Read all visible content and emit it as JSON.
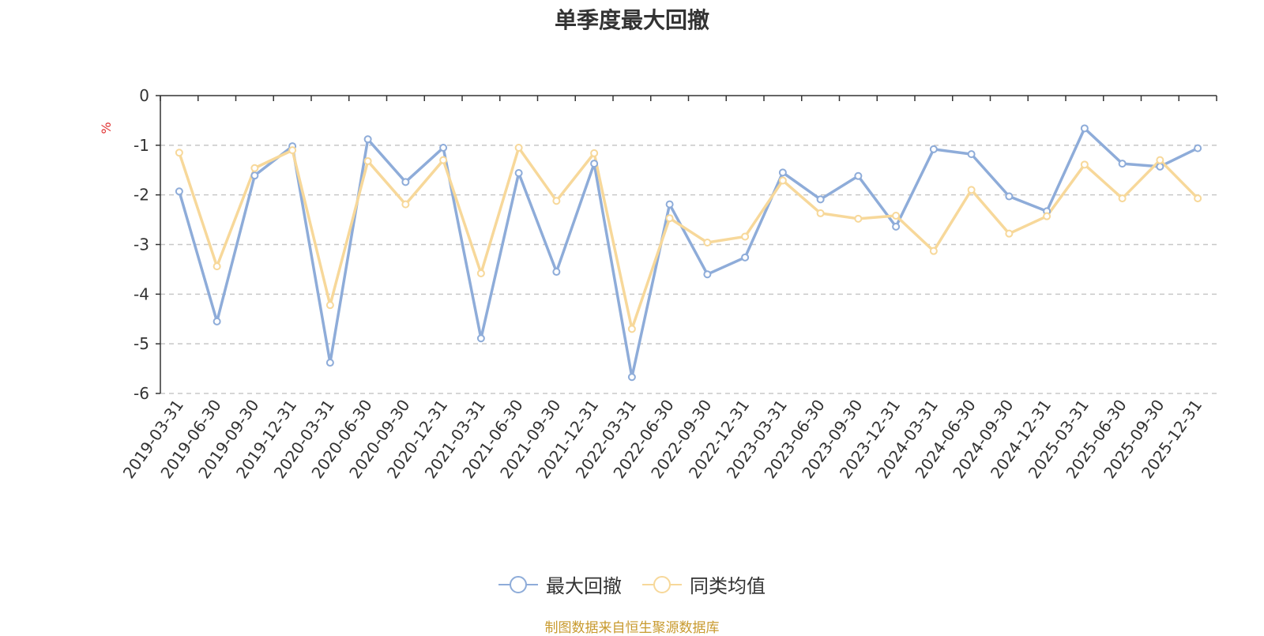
{
  "chart_data": {
    "type": "line",
    "title": "单季度最大回撤",
    "ylabel": "%",
    "ylim": [
      -6,
      0
    ],
    "yticks": [
      0,
      -1,
      -2,
      -3,
      -4,
      -5,
      -6
    ],
    "grid": true,
    "legend_position": "bottom",
    "categories": [
      "2019-03-31",
      "2019-06-30",
      "2019-09-30",
      "2019-12-31",
      "2020-03-31",
      "2020-06-30",
      "2020-09-30",
      "2020-12-31",
      "2021-03-31",
      "2021-06-30",
      "2021-09-30",
      "2021-12-31",
      "2022-03-31",
      "2022-06-30",
      "2022-09-30",
      "2022-12-31",
      "2023-03-31",
      "2023-06-30",
      "2023-09-30",
      "2023-12-31",
      "2024-03-31",
      "2024-06-30",
      "2024-09-30",
      "2024-12-31",
      "2025-03-31",
      "2025-06-30",
      "2025-09-30",
      "2025-12-31"
    ],
    "series": [
      {
        "name": "最大回撤",
        "color": "#8eacd9",
        "values": [
          -1.93,
          -4.55,
          -1.61,
          -1.02,
          -5.38,
          -0.88,
          -1.74,
          -1.05,
          -4.89,
          -1.56,
          -3.55,
          -1.37,
          -5.67,
          -2.19,
          -3.6,
          -3.26,
          -1.55,
          -2.09,
          -1.62,
          -2.64,
          -1.08,
          -1.18,
          -2.03,
          -2.33,
          -0.66,
          -1.37,
          -1.43,
          -1.06
        ]
      },
      {
        "name": "同类均值",
        "color": "#f7d89a",
        "values": [
          -1.15,
          -3.44,
          -1.46,
          -1.1,
          -4.22,
          -1.32,
          -2.19,
          -1.3,
          -3.58,
          -1.05,
          -2.12,
          -1.16,
          -4.7,
          -2.47,
          -2.96,
          -2.84,
          -1.71,
          -2.37,
          -2.48,
          -2.42,
          -3.13,
          -1.9,
          -2.78,
          -2.43,
          -1.39,
          -2.07,
          -1.3,
          -2.07
        ]
      }
    ]
  },
  "source_note": "制图数据来自恒生聚源数据库"
}
